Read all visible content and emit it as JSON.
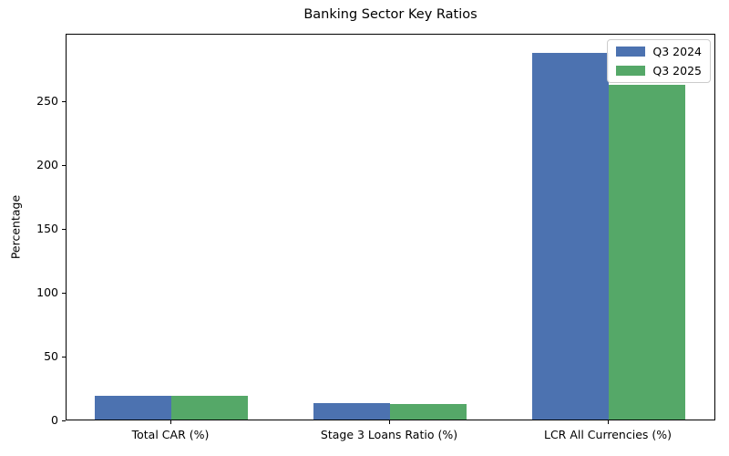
{
  "chart_data": {
    "type": "bar",
    "title": "Banking Sector Key Ratios",
    "ylabel": "Percentage",
    "xlabel": "",
    "categories": [
      "Total CAR (%)",
      "Stage 3 Loans Ratio (%)",
      "LCR All Currencies (%)"
    ],
    "series": [
      {
        "name": "Q3 2024",
        "color": "#4C72B0",
        "values": [
          18.9,
          12.9,
          287.0
        ]
      },
      {
        "name": "Q3 2025",
        "color": "#55A868",
        "values": [
          18.6,
          12.1,
          262.0
        ]
      }
    ],
    "yticks": [
      0,
      50,
      100,
      150,
      200,
      250
    ],
    "ylim": [
      0,
      302.9
    ],
    "grid": false,
    "legend_position": "upper right",
    "bar_width_fraction": 0.35
  }
}
